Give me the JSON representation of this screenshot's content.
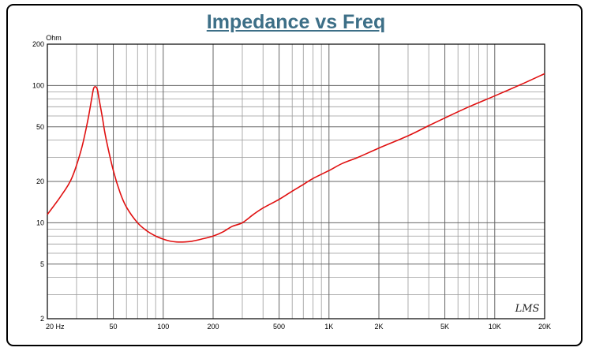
{
  "chart_data": {
    "type": "line",
    "title": "Impedance vs Freq",
    "ylabel": "Ohm",
    "xlabel": "",
    "x_scale": "log",
    "y_scale": "log",
    "xlim": [
      20,
      20000
    ],
    "ylim": [
      2,
      200
    ],
    "grid": true,
    "x_ticks": [
      {
        "value": 20,
        "label": "20  Hz"
      },
      {
        "value": 50,
        "label": "50"
      },
      {
        "value": 100,
        "label": "100"
      },
      {
        "value": 200,
        "label": "200"
      },
      {
        "value": 500,
        "label": "500"
      },
      {
        "value": 1000,
        "label": "1K"
      },
      {
        "value": 2000,
        "label": "2K"
      },
      {
        "value": 5000,
        "label": "5K"
      },
      {
        "value": 10000,
        "label": "10K"
      },
      {
        "value": 20000,
        "label": "20K"
      }
    ],
    "y_ticks": [
      {
        "value": 2,
        "label": "2"
      },
      {
        "value": 5,
        "label": "5"
      },
      {
        "value": 10,
        "label": "10"
      },
      {
        "value": 20,
        "label": "20"
      },
      {
        "value": 50,
        "label": "50"
      },
      {
        "value": 100,
        "label": "100"
      },
      {
        "value": 200,
        "label": "200"
      }
    ],
    "series": [
      {
        "color": "#e01010",
        "x": [
          20,
          24,
          28,
          32,
          35,
          37,
          38,
          39,
          40,
          41,
          43,
          45,
          50,
          55,
          60,
          70,
          80,
          90,
          100,
          110,
          120,
          135,
          150,
          170,
          200,
          230,
          260,
          300,
          350,
          400,
          500,
          600,
          700,
          800,
          1000,
          1200,
          1500,
          2000,
          3000,
          4000,
          5000,
          7000,
          10000,
          15000,
          20000
        ],
        "y": [
          11.5,
          15.5,
          21,
          34,
          55,
          80,
          95,
          98,
          94,
          80,
          58,
          42,
          24,
          16.5,
          13,
          10,
          8.7,
          8.0,
          7.6,
          7.35,
          7.25,
          7.25,
          7.35,
          7.6,
          8.0,
          8.6,
          9.4,
          10.0,
          11.5,
          12.8,
          14.8,
          17,
          19,
          21,
          24,
          27,
          30,
          35,
          43,
          51,
          58,
          70,
          84,
          104,
          122
        ]
      }
    ],
    "annotations": [
      {
        "text": "LMS",
        "position": "bottom-right"
      }
    ]
  }
}
